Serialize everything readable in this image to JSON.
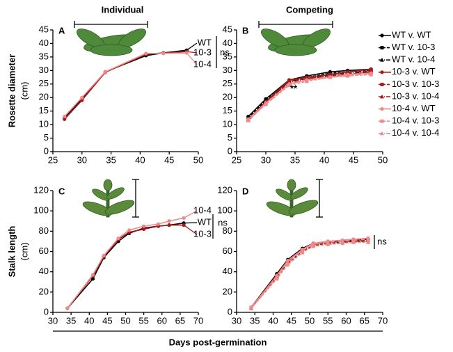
{
  "figure": {
    "column_titles": [
      "Individual",
      "Competing"
    ],
    "xlabel": "Days post-germination"
  },
  "chart_data": [
    {
      "type": "line",
      "panel": "A",
      "ylabel": "Rosette diameter",
      "ylabel_unit": "(cm)",
      "x": [
        27,
        30,
        34,
        41,
        44,
        48
      ],
      "xlim": [
        25,
        50
      ],
      "xticks": [
        25,
        30,
        35,
        40,
        45,
        50
      ],
      "ylim": [
        0,
        45
      ],
      "yticks": [
        0,
        5,
        10,
        15,
        20,
        25,
        30,
        35,
        40,
        45
      ],
      "legend": "direct",
      "annotations": [
        "ns"
      ],
      "series": [
        {
          "name": "WT",
          "color": "#000000",
          "dash": "solid",
          "marker": "circle",
          "values": [
            12.5,
            19.5,
            29.5,
            35.5,
            36.5,
            37.5
          ]
        },
        {
          "name": "10-3",
          "color": "#a01c1c",
          "dash": "solid",
          "marker": "circle",
          "values": [
            12,
            19,
            29.3,
            36,
            36.5,
            37
          ]
        },
        {
          "name": "10-4",
          "color": "#f08a8a",
          "dash": "solid",
          "marker": "circle",
          "values": [
            13,
            20,
            29.5,
            36.3,
            36.3,
            36.5
          ]
        }
      ]
    },
    {
      "type": "line",
      "panel": "B",
      "x": [
        27,
        30,
        34,
        37,
        41,
        44,
        48
      ],
      "xlim": [
        25,
        50
      ],
      "xticks": [
        25,
        30,
        35,
        40,
        45,
        50
      ],
      "ylim": [
        0,
        45
      ],
      "yticks": [
        0,
        5,
        10,
        15,
        20,
        25,
        30,
        35,
        40,
        45
      ],
      "legend": "right",
      "annotations": [
        "**"
      ],
      "series": [
        {
          "name": "WT v. WT",
          "color": "#000000",
          "dash": "solid",
          "marker": "circle",
          "values": [
            13,
            19.5,
            26.5,
            28,
            29.5,
            30,
            30.5
          ]
        },
        {
          "name": "WT v. 10-3",
          "color": "#000000",
          "dash": "dashed",
          "marker": "square",
          "values": [
            12.5,
            19,
            26,
            27.5,
            29,
            29.5,
            30
          ]
        },
        {
          "name": "WT v. 10-4",
          "color": "#000000",
          "dash": "dashdot",
          "marker": "triangle",
          "values": [
            12,
            18.5,
            26,
            27,
            28.5,
            29,
            29.5
          ]
        },
        {
          "name": "10-3 v. WT",
          "color": "#a01c1c",
          "dash": "solid",
          "marker": "circle",
          "values": [
            12,
            18.5,
            26.5,
            27.5,
            28.5,
            29.5,
            30.5
          ]
        },
        {
          "name": "10-3 v. 10-3",
          "color": "#a01c1c",
          "dash": "dashed",
          "marker": "square",
          "values": [
            12,
            18,
            26,
            27,
            28,
            28.5,
            29.5
          ]
        },
        {
          "name": "10-3 v. 10-4",
          "color": "#a01c1c",
          "dash": "dashdot",
          "marker": "triangle",
          "values": [
            11.5,
            18,
            25.5,
            27,
            28,
            29,
            30
          ]
        },
        {
          "name": "10-4 v. WT",
          "color": "#f08a8a",
          "dash": "solid",
          "marker": "circle",
          "values": [
            12,
            18,
            25,
            26.5,
            27.5,
            28.5,
            29
          ]
        },
        {
          "name": "10-4 v. 10-3",
          "color": "#f08a8a",
          "dash": "dashed",
          "marker": "square",
          "values": [
            11.5,
            17.5,
            24.5,
            26,
            27.5,
            28,
            28.5
          ]
        },
        {
          "name": "10-4 v. 10-4",
          "color": "#f08a8a",
          "dash": "dashdot",
          "marker": "triangle",
          "values": [
            12,
            17.5,
            25,
            26.5,
            27.5,
            28,
            29
          ]
        }
      ]
    },
    {
      "type": "line",
      "panel": "C",
      "ylabel": "Stalk length",
      "ylabel_unit": "(cm)",
      "x": [
        34,
        41,
        44,
        48,
        51,
        55,
        59,
        62,
        66
      ],
      "xlim": [
        30,
        70
      ],
      "xticks": [
        30,
        35,
        40,
        45,
        50,
        55,
        60,
        65,
        70
      ],
      "ylim": [
        0,
        120
      ],
      "yticks": [
        0,
        20,
        40,
        60,
        80,
        100,
        120
      ],
      "legend": "direct",
      "annotations": [
        "ns"
      ],
      "series": [
        {
          "name": "WT",
          "color": "#000000",
          "dash": "solid",
          "marker": "circle",
          "values": [
            4,
            33,
            54,
            70,
            78,
            83,
            85,
            86,
            88
          ]
        },
        {
          "name": "10-3",
          "color": "#a01c1c",
          "dash": "solid",
          "marker": "circle",
          "values": [
            4,
            36,
            55,
            72,
            79,
            82,
            85,
            86,
            86
          ]
        },
        {
          "name": "10-4",
          "color": "#f08a8a",
          "dash": "solid",
          "marker": "circle",
          "values": [
            4,
            37,
            56,
            73,
            81,
            85,
            87,
            90,
            93
          ]
        }
      ]
    },
    {
      "type": "line",
      "panel": "D",
      "x": [
        34,
        41,
        44,
        48,
        51,
        55,
        59,
        62,
        66
      ],
      "xlim": [
        30,
        70
      ],
      "xticks": [
        30,
        35,
        40,
        45,
        50,
        55,
        60,
        65,
        70
      ],
      "ylim": [
        0,
        120
      ],
      "yticks": [
        0,
        20,
        40,
        60,
        80,
        100,
        120
      ],
      "legend": "none",
      "annotations": [
        "ns"
      ],
      "series": [
        {
          "name": "WT v. WT",
          "color": "#000000",
          "dash": "solid",
          "marker": "circle",
          "values": [
            5,
            38,
            52,
            63,
            68,
            69,
            70,
            71,
            72
          ]
        },
        {
          "name": "WT v. 10-3",
          "color": "#000000",
          "dash": "dashed",
          "marker": "square",
          "values": [
            4,
            35,
            49,
            60,
            66,
            68,
            69,
            70,
            70
          ]
        },
        {
          "name": "WT v. 10-4",
          "color": "#000000",
          "dash": "dashdot",
          "marker": "triangle",
          "values": [
            4,
            36,
            50,
            61,
            67,
            69,
            70,
            71,
            71
          ]
        },
        {
          "name": "10-3 v. WT",
          "color": "#a01c1c",
          "dash": "solid",
          "marker": "circle",
          "values": [
            4,
            37,
            51,
            62,
            68,
            70,
            71,
            72,
            73
          ]
        },
        {
          "name": "10-3 v. 10-3",
          "color": "#a01c1c",
          "dash": "dashed",
          "marker": "square",
          "values": [
            4,
            34,
            48,
            60,
            66,
            68,
            69,
            70,
            70
          ]
        },
        {
          "name": "10-3 v. 10-4",
          "color": "#a01c1c",
          "dash": "dashdot",
          "marker": "triangle",
          "values": [
            4,
            35,
            50,
            61,
            67,
            69,
            70,
            70,
            71
          ]
        },
        {
          "name": "10-4 v. WT",
          "color": "#f08a8a",
          "dash": "solid",
          "marker": "circle",
          "values": [
            5,
            36,
            51,
            62,
            68,
            70,
            71,
            72,
            73
          ]
        },
        {
          "name": "10-4 v. 10-3",
          "color": "#f08a8a",
          "dash": "dashed",
          "marker": "square",
          "values": [
            4,
            33,
            47,
            59,
            65,
            67,
            68,
            69,
            69
          ]
        },
        {
          "name": "10-4 v. 10-4",
          "color": "#f08a8a",
          "dash": "dashdot",
          "marker": "triangle",
          "values": [
            4,
            35,
            49,
            61,
            67,
            69,
            70,
            71,
            72
          ]
        }
      ]
    }
  ]
}
